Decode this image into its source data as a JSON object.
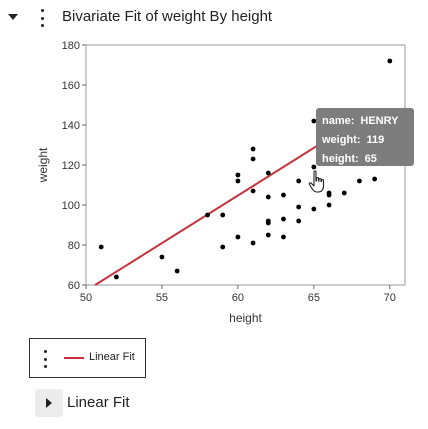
{
  "report": {
    "title": "Bivariate Fit of weight By height",
    "collapse_icon": "triangle-down-icon",
    "menu_icon": "kebab-menu-icon"
  },
  "chart_data": {
    "type": "scatter",
    "xlabel": "height",
    "ylabel": "weight",
    "xlim": [
      50,
      71
    ],
    "ylim": [
      60,
      180
    ],
    "x_ticks": [
      50,
      55,
      60,
      65,
      70
    ],
    "y_ticks": [
      60,
      80,
      100,
      120,
      140,
      160,
      180
    ],
    "point_color": "#000000",
    "fit_color": "#c8323c",
    "points": [
      [
        51,
        79
      ],
      [
        52,
        64
      ],
      [
        55,
        74
      ],
      [
        56,
        67
      ],
      [
        58,
        95
      ],
      [
        59,
        95
      ],
      [
        59,
        79
      ],
      [
        60,
        115
      ],
      [
        60,
        112
      ],
      [
        60,
        84
      ],
      [
        61,
        128
      ],
      [
        61,
        123
      ],
      [
        61,
        107
      ],
      [
        61,
        81
      ],
      [
        62,
        116
      ],
      [
        62,
        104
      ],
      [
        62,
        92
      ],
      [
        62,
        91
      ],
      [
        62,
        85
      ],
      [
        63,
        105
      ],
      [
        63,
        93
      ],
      [
        63,
        84
      ],
      [
        64,
        112
      ],
      [
        64,
        99
      ],
      [
        64,
        92
      ],
      [
        65,
        142
      ],
      [
        65,
        119
      ],
      [
        65,
        98
      ],
      [
        66,
        106
      ],
      [
        66,
        105
      ],
      [
        66,
        100
      ],
      [
        67,
        106
      ],
      [
        68,
        112
      ],
      [
        69,
        113
      ],
      [
        70,
        172
      ]
    ],
    "fit_line": {
      "x": [
        50.6,
        67.4
      ],
      "y": [
        60.0,
        140.0
      ]
    }
  },
  "tooltip": {
    "name_label": "name:",
    "name_value": "HENRY",
    "weight_label": "weight:",
    "weight_value": "119",
    "height_label": "height:",
    "height_value": "65"
  },
  "legend": {
    "fit_label": "Linear Fit",
    "menu_icon": "kebab-menu-icon"
  },
  "linear_fit_section": {
    "label": "Linear Fit",
    "toggle_icon": "triangle-right-icon"
  },
  "cursor_icon": "hand-pointer-icon"
}
